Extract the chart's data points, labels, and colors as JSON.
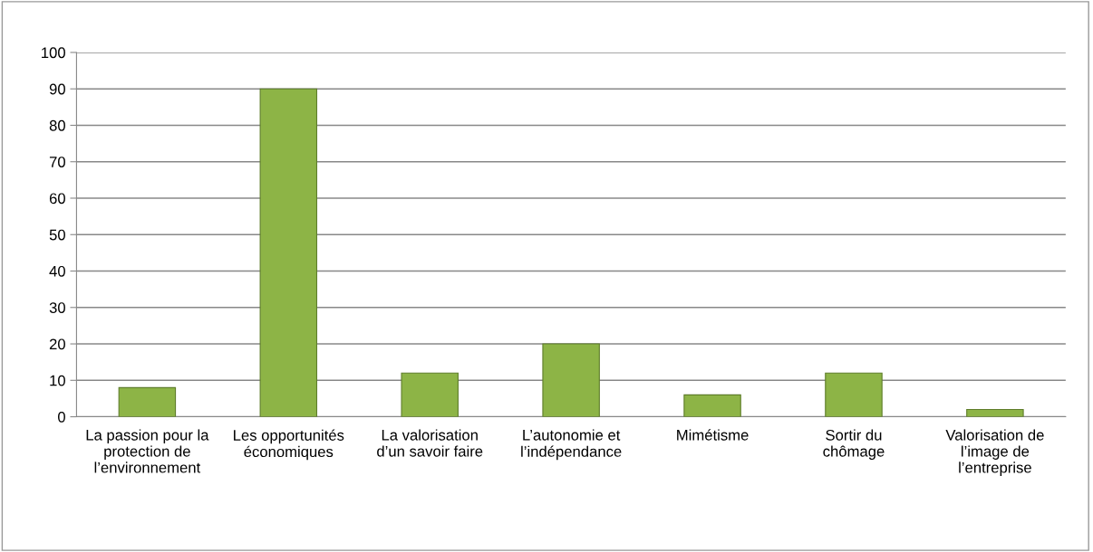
{
  "chart_data": {
    "type": "bar",
    "categories": [
      "La passion pour la\nprotection de\nl’environnement",
      "Les opportunités\néconomiques",
      "La valorisation\nd’un savoir faire",
      "L’autonomie et\nl’indépendance",
      "Mimétisme",
      "Sortir du\nchômage",
      "Valorisation de\nl’image de\nl’entreprise"
    ],
    "values": [
      8,
      90,
      12,
      20,
      6,
      12,
      2
    ],
    "color": "#8db446",
    "ylim": [
      0,
      100
    ],
    "yticks": [
      0,
      10,
      20,
      30,
      40,
      50,
      60,
      70,
      80,
      90,
      100
    ],
    "grid": "y"
  }
}
